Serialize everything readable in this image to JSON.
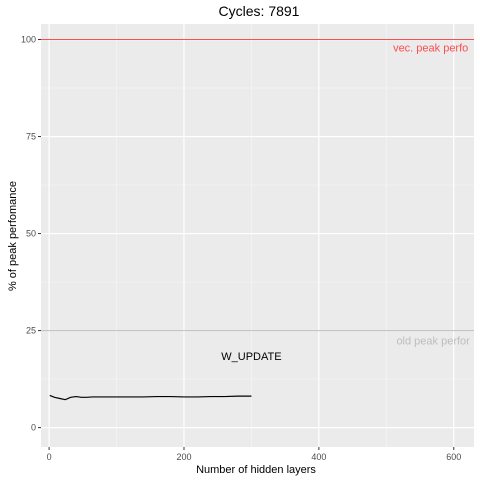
{
  "chart_data": {
    "type": "line",
    "title": "Cycles:  7891",
    "xlabel": "Number of hidden layers",
    "ylabel": "% of peak perfomance",
    "xlim": [
      -12,
      630
    ],
    "ylim": [
      -5,
      104
    ],
    "x_ticks": [
      0,
      200,
      400,
      600
    ],
    "y_ticks": [
      0,
      25,
      50,
      75,
      100
    ],
    "x_tick_labels": [
      "0",
      "200",
      "400",
      "600"
    ],
    "y_tick_labels": [
      "0",
      "25",
      "50",
      "75",
      "100"
    ],
    "grid": true,
    "series": [
      {
        "color": "#000000",
        "x": [
          1,
          8,
          16,
          24,
          32,
          40,
          48,
          56,
          64,
          80,
          100,
          120,
          140,
          160,
          180,
          200,
          220,
          240,
          260,
          280,
          300
        ],
        "y": [
          8.3,
          7.8,
          7.5,
          7.2,
          7.8,
          8.0,
          7.8,
          7.8,
          7.9,
          7.9,
          7.9,
          7.9,
          7.9,
          8.0,
          8.0,
          7.9,
          7.9,
          8.0,
          8.0,
          8.1,
          8.1
        ]
      }
    ],
    "reference_lines": [
      {
        "y": 100,
        "color": "#ff4d4d",
        "label": "vec. peak perfo",
        "label_x": 510,
        "label_y": 98
      },
      {
        "y": 25,
        "color": "#bdbdbd",
        "label": "old peak perfor",
        "label_x": 515,
        "label_y": 22.5
      }
    ],
    "annotations": [
      {
        "text": "W_UPDATE",
        "x": 300,
        "y": 18.5,
        "color": "#000000"
      }
    ]
  }
}
